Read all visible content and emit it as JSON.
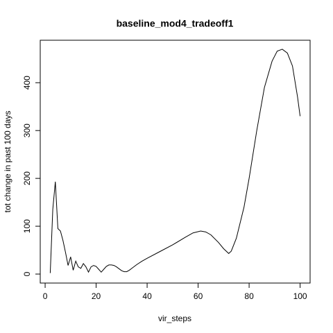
{
  "chart_data": {
    "type": "line",
    "title": "baseline_mod4_tradeoff1",
    "x_label": "vir_steps",
    "y_label": "tot change in past 100 days",
    "x": [
      2,
      3,
      4,
      5,
      6,
      7,
      8,
      9,
      10,
      11,
      12,
      13,
      14,
      15,
      16,
      17,
      18,
      19,
      20,
      21,
      22,
      23,
      24,
      25,
      26,
      27,
      28,
      29,
      30,
      31,
      32,
      33,
      34,
      36,
      38,
      40,
      45,
      50,
      55,
      58,
      61,
      63,
      65,
      68,
      70,
      72,
      73,
      75,
      78,
      80,
      83,
      86,
      89,
      91,
      93,
      95,
      97,
      99,
      100
    ],
    "series": [
      {
        "name": "tot change",
        "color": "#000000",
        "values": [
          2,
          135,
          193,
          95,
          90,
          70,
          45,
          18,
          36,
          8,
          27,
          15,
          12,
          22,
          15,
          4,
          15,
          18,
          16,
          10,
          4,
          10,
          16,
          19,
          19,
          18,
          15,
          11,
          7,
          5,
          5,
          8,
          12,
          20,
          27,
          33,
          47,
          61,
          77,
          86,
          90,
          88,
          82,
          66,
          53,
          43,
          48,
          75,
          140,
          200,
          300,
          390,
          445,
          466,
          470,
          462,
          435,
          370,
          330
        ]
      }
    ],
    "xlim": [
      -1.92,
      103.92
    ],
    "ylim": [
      -18.8,
      488.8
    ],
    "xticks": [
      0,
      20,
      40,
      60,
      80,
      100
    ],
    "yticks": [
      0,
      100,
      200,
      300,
      400
    ]
  }
}
